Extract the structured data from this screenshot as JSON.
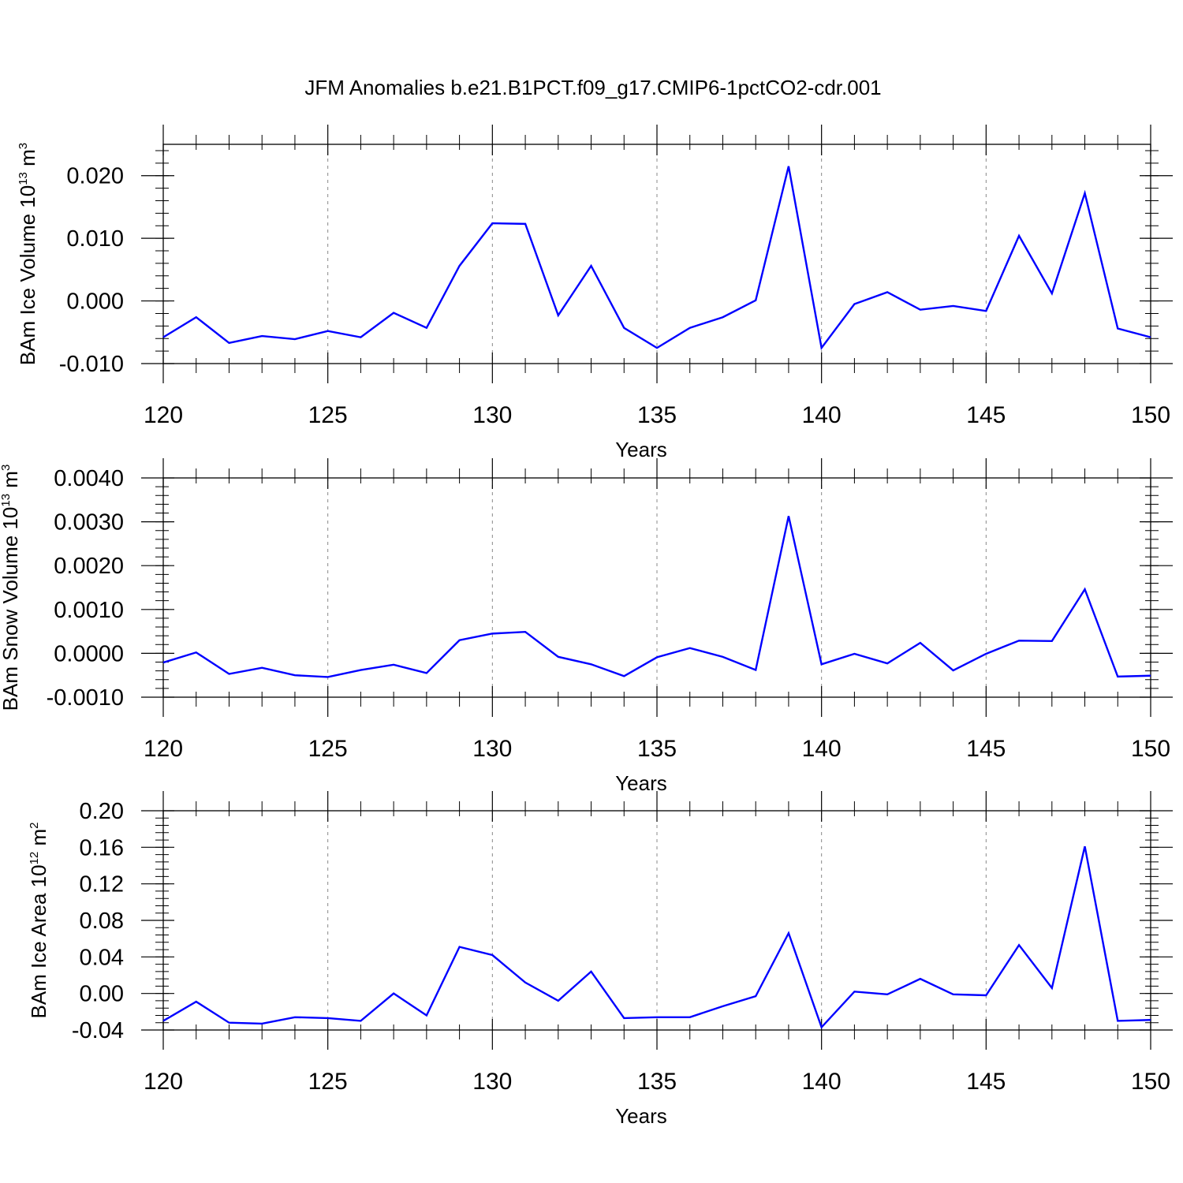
{
  "title": "JFM Anomalies b.e21.B1PCT.f09_g17.CMIP6-1pctCO2-cdr.001",
  "chart_data": [
    {
      "type": "line",
      "xlabel": "Years",
      "ylabel": {
        "main": "BAm Ice Volume 10",
        "exp": "13",
        "unit": " m",
        "unit_exp": "3"
      },
      "xlim": [
        120,
        150
      ],
      "ylim": [
        -0.01,
        0.025
      ],
      "xticks": [
        120,
        125,
        130,
        135,
        140,
        145,
        150
      ],
      "xtick_labels": [
        "120",
        "125",
        "130",
        "135",
        "140",
        "145",
        "150"
      ],
      "yticks": [
        -0.01,
        0.0,
        0.01,
        0.02
      ],
      "ytick_labels": [
        "-0.010",
        "0.000",
        "0.010",
        "0.020"
      ],
      "grid": "vertical dashed at major x ticks",
      "line_color": "#0000ff",
      "x": [
        120,
        121,
        122,
        123,
        124,
        125,
        126,
        127,
        128,
        129,
        130,
        131,
        132,
        133,
        134,
        135,
        136,
        137,
        138,
        139,
        140,
        141,
        142,
        143,
        144,
        145,
        146,
        147,
        148,
        149,
        150
      ],
      "y": [
        -0.0058,
        -0.0026,
        -0.0067,
        -0.0056,
        -0.0061,
        -0.0048,
        -0.0058,
        -0.0019,
        -0.0043,
        0.0056,
        0.0124,
        0.0123,
        -0.0023,
        0.0056,
        -0.0043,
        -0.0075,
        -0.0043,
        -0.0026,
        0.0001,
        0.0215,
        -0.0075,
        -0.0005,
        0.0014,
        -0.0014,
        -0.0008,
        -0.0016,
        0.0104,
        0.0012,
        0.0172,
        -0.0044,
        -0.0058
      ]
    },
    {
      "type": "line",
      "xlabel": "Years",
      "ylabel": {
        "main": "BAm Snow Volume 10",
        "exp": "13",
        "unit": " m",
        "unit_exp": "3"
      },
      "xlim": [
        120,
        150
      ],
      "ylim": [
        -0.001,
        0.004
      ],
      "xticks": [
        120,
        125,
        130,
        135,
        140,
        145,
        150
      ],
      "xtick_labels": [
        "120",
        "125",
        "130",
        "135",
        "140",
        "145",
        "150"
      ],
      "yticks": [
        -0.001,
        0.0,
        0.001,
        0.002,
        0.003,
        0.004
      ],
      "ytick_labels": [
        "-0.0010",
        "0.0000",
        "0.0010",
        "0.0020",
        "0.0030",
        "0.0040"
      ],
      "grid": "vertical dashed at major x ticks",
      "line_color": "#0000ff",
      "x": [
        120,
        121,
        122,
        123,
        124,
        125,
        126,
        127,
        128,
        129,
        130,
        131,
        132,
        133,
        134,
        135,
        136,
        137,
        138,
        139,
        140,
        141,
        142,
        143,
        144,
        145,
        146,
        147,
        148,
        149,
        150
      ],
      "y": [
        -0.00021,
        2e-05,
        -0.00047,
        -0.00033,
        -0.0005,
        -0.00054,
        -0.00038,
        -0.00026,
        -0.00045,
        0.0003,
        0.00045,
        0.00049,
        -8e-05,
        -0.00025,
        -0.00052,
        -9e-05,
        0.00012,
        -8e-05,
        -0.00038,
        0.00313,
        -0.00025,
        -1e-05,
        -0.00023,
        0.00024,
        -0.00039,
        -1e-05,
        0.00029,
        0.00028,
        0.00146,
        -0.00053,
        -0.00051
      ]
    },
    {
      "type": "line",
      "xlabel": "Years",
      "ylabel": {
        "main": "BAm Ice Area 10",
        "exp": "12",
        "unit": " m",
        "unit_exp": "2"
      },
      "xlim": [
        120,
        150
      ],
      "ylim": [
        -0.04,
        0.2
      ],
      "xticks": [
        120,
        125,
        130,
        135,
        140,
        145,
        150
      ],
      "xtick_labels": [
        "120",
        "125",
        "130",
        "135",
        "140",
        "145",
        "150"
      ],
      "yticks": [
        -0.04,
        0.0,
        0.04,
        0.08,
        0.12,
        0.16,
        0.2
      ],
      "ytick_labels": [
        "-0.04",
        "0.00",
        "0.04",
        "0.08",
        "0.12",
        "0.16",
        "0.20"
      ],
      "grid": "vertical dashed at major x ticks",
      "line_color": "#0000ff",
      "x": [
        120,
        121,
        122,
        123,
        124,
        125,
        126,
        127,
        128,
        129,
        130,
        131,
        132,
        133,
        134,
        135,
        136,
        137,
        138,
        139,
        140,
        141,
        142,
        143,
        144,
        145,
        146,
        147,
        148,
        149,
        150
      ],
      "y": [
        -0.03,
        -0.009,
        -0.032,
        -0.033,
        -0.026,
        -0.027,
        -0.03,
        0.0,
        -0.024,
        0.051,
        0.042,
        0.012,
        -0.008,
        0.024,
        -0.027,
        -0.026,
        -0.026,
        -0.014,
        -0.003,
        0.066,
        -0.037,
        0.002,
        -0.001,
        0.016,
        -0.001,
        -0.002,
        0.053,
        0.006,
        0.161,
        -0.03,
        -0.029
      ]
    }
  ]
}
